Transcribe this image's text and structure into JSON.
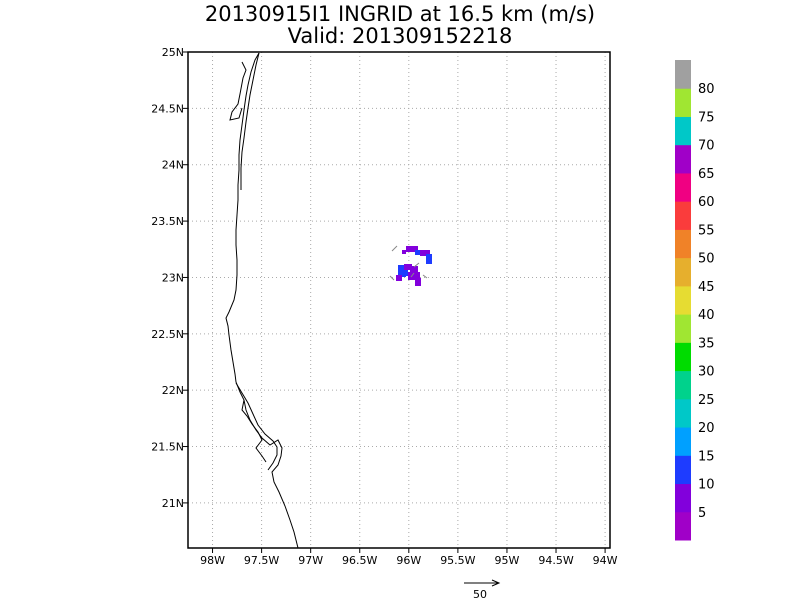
{
  "title": {
    "line1": "20130915I1 INGRID at 16.5 km (m/s)",
    "line2": "Valid: 201309152218"
  },
  "axes": {
    "lon_range": [
      -98.25,
      -93.95
    ],
    "lat_range": [
      20.6,
      25.0
    ],
    "lon_ticks": [
      {
        "value": -98.0,
        "label": "98W"
      },
      {
        "value": -97.5,
        "label": "97.5W"
      },
      {
        "value": -97.0,
        "label": "97W"
      },
      {
        "value": -96.5,
        "label": "96.5W"
      },
      {
        "value": -96.0,
        "label": "96W"
      },
      {
        "value": -95.5,
        "label": "95.5W"
      },
      {
        "value": -95.0,
        "label": "95W"
      },
      {
        "value": -94.5,
        "label": "94.5W"
      },
      {
        "value": -94.0,
        "label": "94W"
      }
    ],
    "lat_ticks": [
      {
        "value": 25.0,
        "label": "25N"
      },
      {
        "value": 24.5,
        "label": "24.5N"
      },
      {
        "value": 24.0,
        "label": "24N"
      },
      {
        "value": 23.5,
        "label": "23.5N"
      },
      {
        "value": 23.0,
        "label": "23N"
      },
      {
        "value": 22.5,
        "label": "22.5N"
      },
      {
        "value": 22.0,
        "label": "22N"
      },
      {
        "value": 21.5,
        "label": "21.5N"
      },
      {
        "value": 21.0,
        "label": "21N"
      }
    ],
    "grid": true
  },
  "colorbar": {
    "colors": [
      "#a000c8",
      "#8200dc",
      "#1e3cff",
      "#00a0ff",
      "#00c8c8",
      "#00d28c",
      "#00dc00",
      "#a0e632",
      "#e6dc32",
      "#e6af2d",
      "#f08228",
      "#fa3c3c",
      "#f00082",
      "#a000c8",
      "#00c8c8",
      "#a0e632",
      "#a0a0a0"
    ],
    "labels": [
      "5",
      "10",
      "15",
      "20",
      "25",
      "30",
      "35",
      "40",
      "45",
      "50",
      "55",
      "60",
      "65",
      "70",
      "75",
      "80"
    ]
  },
  "vector_reference": {
    "label": "50"
  }
}
